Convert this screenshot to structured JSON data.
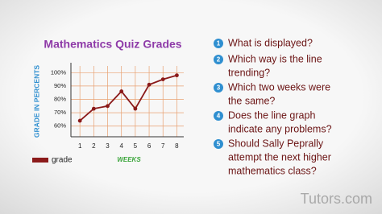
{
  "chart_data": {
    "type": "line",
    "title": "Mathematics Quiz Grades",
    "ylabel": "GRADE IN PERCENTS",
    "xlabel": "WEEKS",
    "x": [
      1,
      2,
      3,
      4,
      5,
      6,
      7,
      8
    ],
    "xlim": [
      0.35,
      8.5
    ],
    "xticks": [
      1,
      2,
      3,
      4,
      5,
      6,
      7,
      8
    ],
    "ylim": [
      52,
      105
    ],
    "yticks": [
      {
        "value": 60,
        "label": "60%"
      },
      {
        "value": 70,
        "label": "70%"
      },
      {
        "value": 80,
        "label": "80%"
      },
      {
        "value": 90,
        "label": "90%"
      },
      {
        "value": 100,
        "label": "100%"
      }
    ],
    "grid": true,
    "series": [
      {
        "name": "grade",
        "color": "#8b1a1a",
        "values": [
          64,
          73,
          75,
          86,
          73,
          91,
          95,
          98
        ]
      }
    ]
  },
  "questions": [
    {
      "number": "1",
      "lines": [
        "What is displayed?"
      ]
    },
    {
      "number": "2",
      "lines": [
        "Which way is the line",
        "trending?"
      ]
    },
    {
      "number": "3",
      "lines": [
        "Which two weeks were",
        "the same?"
      ]
    },
    {
      "number": "4",
      "lines": [
        "Does the line graph",
        "indicate any problems?"
      ]
    },
    {
      "number": "5",
      "lines": [
        "Should Sally Peprally",
        "attempt the next higher",
        "mathematics class?"
      ]
    }
  ],
  "watermark": "Tutors.com"
}
